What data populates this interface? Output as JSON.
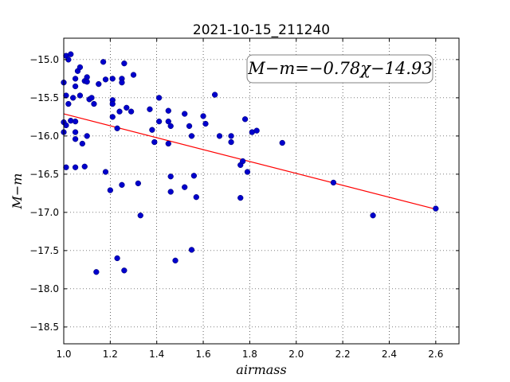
{
  "chart_data": {
    "type": "scatter",
    "title": "2021-10-15_211240",
    "xlabel": "airmass",
    "ylabel": "M−m",
    "xlim": [
      1.0,
      2.7
    ],
    "ylim": [
      -18.72,
      -14.72
    ],
    "y_inverted": true,
    "grid": true,
    "x_ticks": [
      1.0,
      1.2,
      1.4,
      1.6,
      1.8,
      2.0,
      2.2,
      2.4,
      2.6
    ],
    "x_tick_labels": [
      "1.0",
      "1.2",
      "1.4",
      "1.6",
      "1.8",
      "2.0",
      "2.2",
      "2.4",
      "2.6"
    ],
    "y_ticks": [
      -15.0,
      -15.5,
      -16.0,
      -16.5,
      -17.0,
      -17.5,
      -18.0,
      -18.5
    ],
    "y_tick_labels": [
      "−15.0",
      "−15.5",
      "−16.0",
      "−16.5",
      "−17.0",
      "−17.5",
      "−18.0",
      "−18.5"
    ],
    "annotation": "M−m=−0.78χ−14.93",
    "fit": {
      "slope": -0.78,
      "intercept": -14.93,
      "x_range": [
        1.0,
        2.6
      ],
      "color": "#ff0000"
    },
    "marker_color": "#0000cc",
    "points": [
      [
        1.01,
        -14.95
      ],
      [
        1.02,
        -15.0
      ],
      [
        1.03,
        -14.93
      ],
      [
        1.0,
        -15.3
      ],
      [
        1.06,
        -15.15
      ],
      [
        1.07,
        -15.1
      ],
      [
        1.05,
        -15.25
      ],
      [
        1.05,
        -15.35
      ],
      [
        1.09,
        -15.28
      ],
      [
        1.1,
        -15.23
      ],
      [
        1.1,
        -15.29
      ],
      [
        1.01,
        -15.47
      ],
      [
        1.04,
        -15.5
      ],
      [
        1.02,
        -15.58
      ],
      [
        1.07,
        -15.47
      ],
      [
        1.11,
        -15.52
      ],
      [
        1.12,
        -15.5
      ],
      [
        1.13,
        -15.58
      ],
      [
        1.15,
        -15.32
      ],
      [
        1.17,
        -15.03
      ],
      [
        1.18,
        -15.26
      ],
      [
        1.21,
        -15.25
      ],
      [
        1.25,
        -15.25
      ],
      [
        1.26,
        -15.05
      ],
      [
        1.25,
        -15.3
      ],
      [
        1.3,
        -15.2
      ],
      [
        1.21,
        -15.53
      ],
      [
        1.21,
        -15.58
      ],
      [
        1.27,
        -15.63
      ],
      [
        1.29,
        -15.68
      ],
      [
        1.21,
        -15.75
      ],
      [
        1.24,
        -15.68
      ],
      [
        1.37,
        -15.65
      ],
      [
        1.41,
        -15.5
      ],
      [
        1.0,
        -15.82
      ],
      [
        1.01,
        -15.86
      ],
      [
        1.03,
        -15.8
      ],
      [
        1.05,
        -15.81
      ],
      [
        1.05,
        -15.95
      ],
      [
        1.05,
        -16.04
      ],
      [
        1.08,
        -16.1
      ],
      [
        1.1,
        -16.0
      ],
      [
        1.0,
        -15.95
      ],
      [
        1.23,
        -15.9
      ],
      [
        1.38,
        -15.92
      ],
      [
        1.41,
        -15.81
      ],
      [
        1.45,
        -15.81
      ],
      [
        1.46,
        -15.87
      ],
      [
        1.45,
        -15.67
      ],
      [
        1.52,
        -15.71
      ],
      [
        1.54,
        -15.87
      ],
      [
        1.55,
        -16.0
      ],
      [
        1.6,
        -15.74
      ],
      [
        1.61,
        -15.84
      ],
      [
        1.65,
        -15.46
      ],
      [
        1.67,
        -16.0
      ],
      [
        1.72,
        -16.0
      ],
      [
        1.72,
        -16.08
      ],
      [
        1.78,
        -15.78
      ],
      [
        1.81,
        -15.95
      ],
      [
        1.83,
        -15.93
      ],
      [
        1.94,
        -16.09
      ],
      [
        1.39,
        -16.08
      ],
      [
        1.45,
        -16.1
      ],
      [
        1.01,
        -16.41
      ],
      [
        1.05,
        -16.41
      ],
      [
        1.09,
        -16.4
      ],
      [
        1.18,
        -16.47
      ],
      [
        1.2,
        -16.71
      ],
      [
        1.25,
        -16.64
      ],
      [
        1.32,
        -16.62
      ],
      [
        1.33,
        -17.04
      ],
      [
        1.46,
        -16.53
      ],
      [
        1.46,
        -16.73
      ],
      [
        1.52,
        -16.67
      ],
      [
        1.56,
        -16.52
      ],
      [
        1.57,
        -16.8
      ],
      [
        1.76,
        -16.38
      ],
      [
        1.77,
        -16.33
      ],
      [
        1.79,
        -16.47
      ],
      [
        1.76,
        -16.81
      ],
      [
        2.16,
        -16.61
      ],
      [
        2.33,
        -17.04
      ],
      [
        2.6,
        -16.95
      ],
      [
        1.23,
        -17.6
      ],
      [
        1.26,
        -17.76
      ],
      [
        1.14,
        -17.78
      ],
      [
        1.48,
        -17.63
      ],
      [
        1.55,
        -17.49
      ]
    ]
  }
}
